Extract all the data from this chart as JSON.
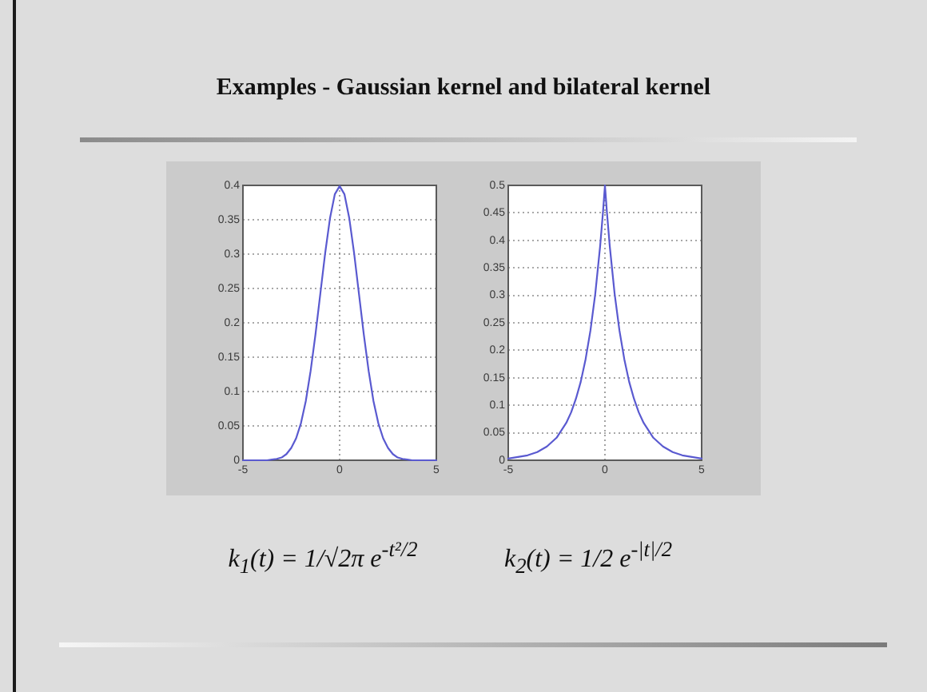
{
  "chart_data": [
    {
      "type": "line",
      "title": "Examples - Gaussian kernel and bilateral kernel",
      "x": [
        -5,
        -4.75,
        -4.5,
        -4.25,
        -4,
        -3.75,
        -3.5,
        -3.25,
        -3,
        -2.75,
        -2.5,
        -2.25,
        -2,
        -1.75,
        -1.5,
        -1.25,
        -1,
        -0.75,
        -0.5,
        -0.25,
        0,
        0.25,
        0.5,
        0.75,
        1,
        1.25,
        1.5,
        1.75,
        2,
        2.25,
        2.5,
        2.75,
        3,
        3.25,
        3.5,
        3.75,
        4,
        4.25,
        4.5,
        4.75,
        5
      ],
      "values": [
        0,
        0,
        0,
        0,
        0,
        0,
        0.001,
        0.002,
        0.004,
        0.009,
        0.018,
        0.032,
        0.054,
        0.086,
        0.13,
        0.183,
        0.242,
        0.301,
        0.352,
        0.387,
        0.399,
        0.387,
        0.352,
        0.301,
        0.242,
        0.183,
        0.13,
        0.086,
        0.054,
        0.032,
        0.018,
        0.009,
        0.004,
        0.002,
        0.001,
        0,
        0,
        0,
        0,
        0,
        0
      ],
      "color": "#5a5ad0",
      "xlim": [
        -5,
        5
      ],
      "xticks": [
        -5,
        0,
        5
      ],
      "ylim": [
        0,
        0.4
      ],
      "yticks": [
        0,
        0.05,
        0.1,
        0.15,
        0.2,
        0.25,
        0.3,
        0.35,
        0.4
      ],
      "grid": true,
      "annotations": [
        "k$_{1}$(t) = 1/√2π e$^{-t²/2}$"
      ]
    },
    {
      "type": "line",
      "x": [
        -5,
        -4.5,
        -4,
        -3.5,
        -3,
        -2.5,
        -2,
        -1.75,
        -1.5,
        -1.25,
        -1,
        -0.75,
        -0.5,
        -0.25,
        -0.1,
        0,
        0.1,
        0.25,
        0.5,
        0.75,
        1,
        1.25,
        1.5,
        1.75,
        2,
        2.5,
        3,
        3.5,
        4,
        4.5,
        5
      ],
      "values": [
        0.003,
        0.006,
        0.009,
        0.015,
        0.025,
        0.041,
        0.068,
        0.087,
        0.112,
        0.143,
        0.184,
        0.236,
        0.303,
        0.389,
        0.452,
        0.5,
        0.452,
        0.389,
        0.303,
        0.236,
        0.184,
        0.143,
        0.112,
        0.087,
        0.068,
        0.041,
        0.025,
        0.015,
        0.009,
        0.006,
        0.003
      ],
      "color": "#5a5ad0",
      "xlim": [
        -5,
        5
      ],
      "xticks": [
        -5,
        0,
        5
      ],
      "ylim": [
        0,
        0.5
      ],
      "yticks": [
        0,
        0.05,
        0.1,
        0.15,
        0.2,
        0.25,
        0.3,
        0.35,
        0.4,
        0.45,
        0.5
      ],
      "grid": true,
      "annotations": [
        "k$_{2}$(t) = 1/2 e$^{-|t|/2}$"
      ]
    }
  ]
}
